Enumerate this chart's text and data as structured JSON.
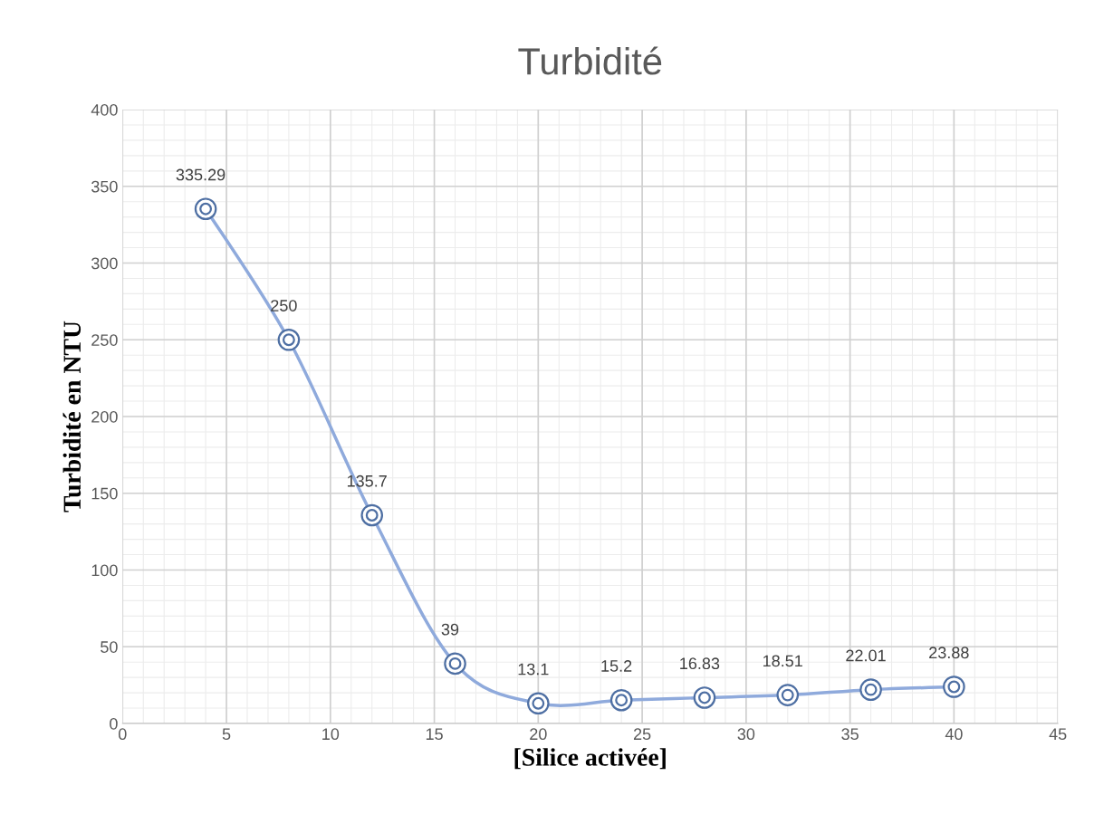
{
  "chart_data": {
    "type": "line",
    "title": "Turbidité",
    "xlabel": "[Silice activée]",
    "ylabel": "Turbidité en NTU",
    "x": [
      4,
      8,
      12,
      16,
      20,
      24,
      28,
      32,
      36,
      40
    ],
    "series": [
      {
        "color": "#8faadc",
        "values": [
          335.29,
          250,
          135.7,
          39,
          13.1,
          15.2,
          16.83,
          18.51,
          22.01,
          23.88
        ]
      }
    ],
    "xlim": [
      0,
      45
    ],
    "xticks": [
      0,
      5,
      10,
      15,
      20,
      25,
      30,
      35,
      40,
      45
    ],
    "ylim": [
      0,
      400
    ],
    "yticks": [
      0,
      50,
      100,
      150,
      200,
      250,
      300,
      350,
      400
    ],
    "grid": true,
    "marker": "circle",
    "line_style": "solid",
    "data_labels": true
  }
}
